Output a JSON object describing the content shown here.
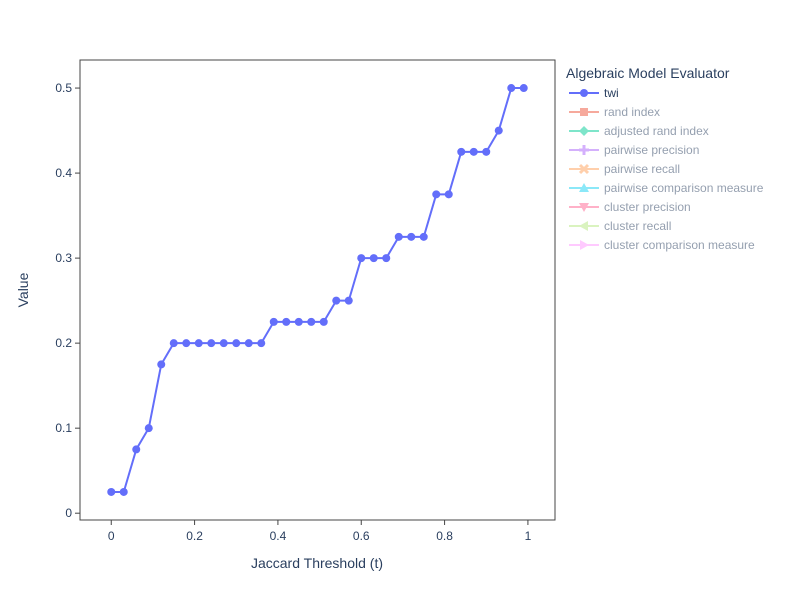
{
  "chart_data": {
    "type": "line",
    "title": "",
    "xlabel": "Jaccard Threshold (t)",
    "ylabel": "Value",
    "xlim": [
      -0.075,
      1.065
    ],
    "ylim": [
      -0.008,
      0.533
    ],
    "xticks": [
      0,
      0.2,
      0.4,
      0.6,
      0.8,
      1
    ],
    "xtick_labels": [
      "0",
      "0.2",
      "0.4",
      "0.6",
      "0.8",
      "1"
    ],
    "yticks": [
      0,
      0.1,
      0.2,
      0.3,
      0.4,
      0.5
    ],
    "ytick_labels": [
      "0",
      "0.1",
      "0.2",
      "0.3",
      "0.4",
      "0.5"
    ],
    "grid": false,
    "legend": {
      "title": "Algebraic Model Evaluator",
      "placement": "right",
      "entries": [
        {
          "name": "twi",
          "color": "#636efa",
          "marker": "circle",
          "visible": true
        },
        {
          "name": "rand index",
          "color": "#EF553B",
          "marker": "square",
          "visible": false
        },
        {
          "name": "adjusted rand index",
          "color": "#00cc96",
          "marker": "diamond",
          "visible": false
        },
        {
          "name": "pairwise precision",
          "color": "#ab63fa",
          "marker": "cross",
          "visible": false
        },
        {
          "name": "pairwise recall",
          "color": "#FFA15A",
          "marker": "x",
          "visible": false
        },
        {
          "name": "pairwise comparison measure",
          "color": "#19d3f3",
          "marker": "triangle-up",
          "visible": false
        },
        {
          "name": "cluster precision",
          "color": "#FF6692",
          "marker": "triangle-down",
          "visible": false
        },
        {
          "name": "cluster recall",
          "color": "#B6E880",
          "marker": "triangle-left",
          "visible": false
        },
        {
          "name": "cluster comparison measure",
          "color": "#FF97FF",
          "marker": "triangle-right",
          "visible": false
        }
      ]
    },
    "series": [
      {
        "name": "twi",
        "color": "#636efa",
        "x": [
          0,
          0.03,
          0.06,
          0.09,
          0.12,
          0.15,
          0.18,
          0.21,
          0.24,
          0.27,
          0.3,
          0.33,
          0.36,
          0.39,
          0.42,
          0.45,
          0.48,
          0.51,
          0.54,
          0.57,
          0.6,
          0.63,
          0.66,
          0.69,
          0.72,
          0.75,
          0.78,
          0.81,
          0.84,
          0.87,
          0.9,
          0.93,
          0.96,
          0.99
        ],
        "y": [
          0.025,
          0.025,
          0.075,
          0.1,
          0.175,
          0.2,
          0.2,
          0.2,
          0.2,
          0.2,
          0.2,
          0.2,
          0.2,
          0.225,
          0.225,
          0.225,
          0.225,
          0.225,
          0.25,
          0.25,
          0.3,
          0.3,
          0.3,
          0.325,
          0.325,
          0.325,
          0.375,
          0.375,
          0.425,
          0.425,
          0.425,
          0.45,
          0.5,
          0.5
        ]
      }
    ]
  }
}
